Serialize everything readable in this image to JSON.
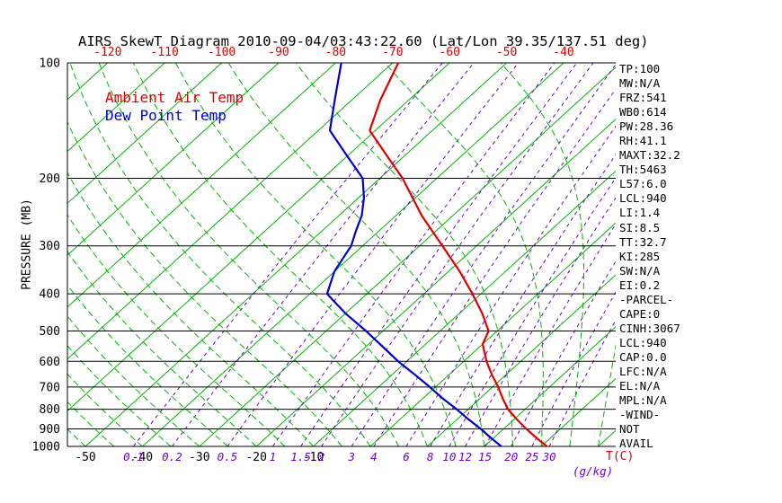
{
  "title": "AIRS SkewT Diagram 2010-09-04/03:43:22.60 (Lat/Lon 39.35/137.51 deg)",
  "legend": {
    "ambient_label": "Ambient Air Temp",
    "dew_label": "Dew Point Temp"
  },
  "stats_panel": {
    "lines": [
      "TP:100",
      "MW:N/A",
      "FRZ:541",
      "WB0:614",
      "PW:28.36",
      "RH:41.1",
      "MAXT:32.2",
      "TH:5463",
      "L57:6.0",
      "LCL:940",
      "LI:1.4",
      "SI:8.5",
      "TT:32.7",
      "KI:285",
      "SW:N/A",
      "EI:0.2",
      "-PARCEL-",
      "CAPE:0",
      "CINH:3067",
      "LCL:940",
      "CAP:0.0",
      "LFC:N/A",
      "EL:N/A",
      "MPL:N/A",
      "-WIND-",
      "NOT",
      "AVAIL"
    ]
  },
  "chart_data": {
    "type": "line",
    "title": "AIRS SkewT Diagram 2010-09-04/03:43:22.60 (Lat/Lon 39.35/137.51 deg)",
    "y_axis": {
      "label": "PRESSURE (MB)",
      "scale": "log",
      "range": [
        100,
        1000
      ],
      "ticks": [
        100,
        200,
        300,
        400,
        500,
        600,
        700,
        800,
        900,
        1000
      ]
    },
    "x_axis": {
      "unit_label": "T(C)",
      "top_ticks": [
        -120,
        -110,
        -100,
        -90,
        -80,
        -70,
        -60,
        -50,
        -40
      ],
      "bottom_ticks": [
        -50,
        -40,
        -30,
        -20,
        -10
      ]
    },
    "mixing_ratio_axis": {
      "unit_label": "(g/kg)",
      "values": [
        0.1,
        0.2,
        0.5,
        1,
        1.5,
        2,
        3,
        4,
        6,
        8,
        10,
        12,
        15,
        20,
        25,
        30
      ]
    },
    "isotherms": {
      "min": -120,
      "max": 40,
      "step": 10
    },
    "moist_adiabats": {
      "min": -55,
      "max": 60,
      "step": 5
    },
    "colors": {
      "isotherm": "#00b400",
      "moist_adiabat": "#00b400",
      "mixing_ratio": "#6e00d2",
      "pressure_line": "#000000",
      "top_tick": "#e00000",
      "bottom_tick": "#000000",
      "temp_curve": "#e00000",
      "dew_curve": "#0000cd"
    },
    "series": [
      {
        "name": "Ambient Air Temp",
        "color": "#e00000",
        "points": [
          [
            100,
            -69
          ],
          [
            125,
            -65
          ],
          [
            150,
            -61
          ],
          [
            175,
            -53
          ],
          [
            200,
            -46
          ],
          [
            250,
            -35.5
          ],
          [
            300,
            -26
          ],
          [
            350,
            -18
          ],
          [
            400,
            -11.5
          ],
          [
            450,
            -6
          ],
          [
            500,
            -1.5
          ],
          [
            541,
            0
          ],
          [
            600,
            4
          ],
          [
            650,
            7.5
          ],
          [
            700,
            11
          ],
          [
            750,
            14
          ],
          [
            800,
            17
          ],
          [
            850,
            20.5
          ],
          [
            900,
            24
          ],
          [
            950,
            27.5
          ],
          [
            1000,
            31
          ]
        ]
      },
      {
        "name": "Dew Point Temp",
        "color": "#0000cd",
        "points": [
          [
            100,
            -79
          ],
          [
            125,
            -73
          ],
          [
            150,
            -68
          ],
          [
            175,
            -60
          ],
          [
            200,
            -53
          ],
          [
            225,
            -49
          ],
          [
            250,
            -46
          ],
          [
            275,
            -44
          ],
          [
            300,
            -42
          ],
          [
            350,
            -40
          ],
          [
            400,
            -37
          ],
          [
            450,
            -30
          ],
          [
            500,
            -23
          ],
          [
            550,
            -17
          ],
          [
            600,
            -11.5
          ],
          [
            650,
            -6
          ],
          [
            700,
            -1
          ],
          [
            750,
            3.5
          ],
          [
            800,
            8
          ],
          [
            850,
            12
          ],
          [
            900,
            16
          ],
          [
            950,
            19.5
          ],
          [
            1000,
            23
          ]
        ]
      }
    ]
  }
}
